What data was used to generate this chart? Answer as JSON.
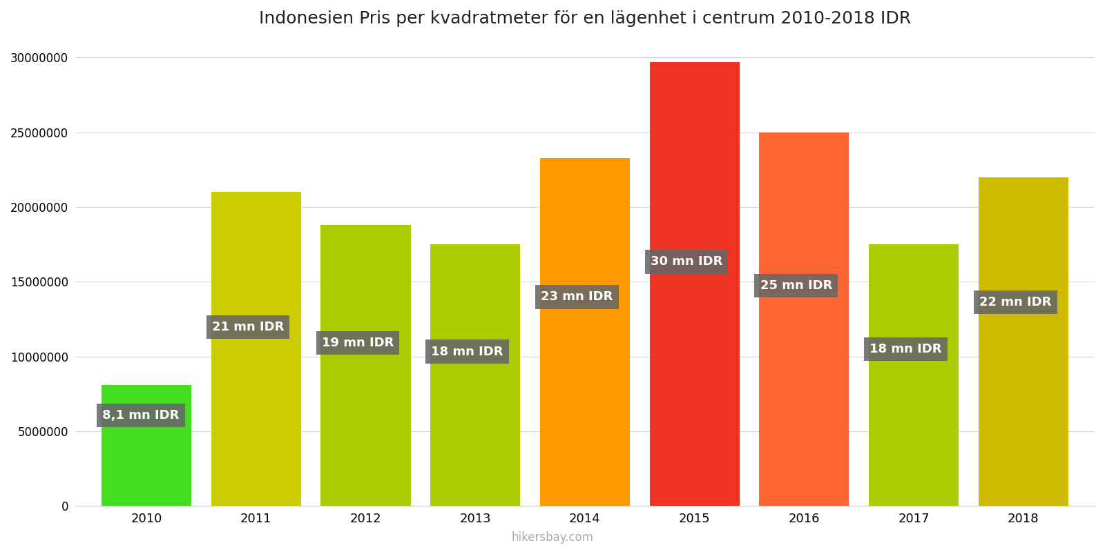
{
  "years": [
    2010,
    2011,
    2012,
    2013,
    2014,
    2015,
    2016,
    2017,
    2018
  ],
  "values": [
    8100000,
    21000000,
    18800000,
    17500000,
    23300000,
    29700000,
    25000000,
    17500000,
    22000000
  ],
  "bar_colors": [
    "#44dd22",
    "#cccc00",
    "#aacc00",
    "#aacc00",
    "#ff9900",
    "#ee3322",
    "#ff6633",
    "#aacc00",
    "#ccbb00"
  ],
  "labels": [
    "8,1 mn IDR",
    "21 mn IDR",
    "19 mn IDR",
    "18 mn IDR",
    "23 mn IDR",
    "30 mn IDR",
    "25 mn IDR",
    "18 mn IDR",
    "22 mn IDR"
  ],
  "title": "Indonesien Pris per kvadratmeter för en lägenhet i centrum 2010-2018 IDR",
  "ylim": [
    0,
    31000000
  ],
  "yticks": [
    0,
    5000000,
    10000000,
    15000000,
    20000000,
    25000000,
    30000000
  ],
  "background_color": "#ffffff",
  "watermark": "hikersbay.com",
  "label_box_color": "#666666",
  "label_text_color": "#ffffff"
}
